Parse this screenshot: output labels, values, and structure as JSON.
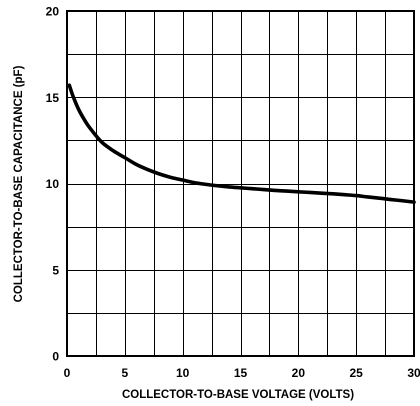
{
  "chart_data": {
    "type": "line",
    "title": "",
    "xlabel": "COLLECTOR-TO-BASE VOLTAGE (VOLTS)",
    "ylabel": "COLLECTOR-TO-BASE CAPACITANCE (pF)",
    "xlim": [
      0,
      30
    ],
    "ylim": [
      0,
      20
    ],
    "x_ticks": [
      0,
      5,
      10,
      15,
      20,
      25,
      30
    ],
    "y_ticks": [
      0,
      5,
      10,
      15,
      20
    ],
    "x_tick_labels": [
      "0",
      "5",
      "10",
      "15",
      "20",
      "25",
      "30"
    ],
    "y_tick_labels": [
      "0",
      "5",
      "10",
      "15",
      "20"
    ],
    "x_gridlines": [
      0,
      2.5,
      5,
      7.5,
      10,
      12.5,
      15,
      17.5,
      20,
      22.5,
      25,
      27.5,
      30
    ],
    "y_gridlines": [
      0,
      2.5,
      5,
      7.5,
      10,
      12.5,
      15,
      17.5,
      20
    ],
    "grid": true,
    "legend": "none",
    "series": [
      {
        "color": "#000000",
        "x": [
          0.2,
          0.5,
          1,
          1.5,
          2,
          3,
          4,
          5,
          6,
          7,
          8,
          9,
          10,
          11,
          12,
          13,
          14,
          15,
          16,
          17,
          18,
          19,
          20,
          21,
          22,
          23,
          24,
          25,
          26,
          27,
          28,
          29,
          30
        ],
        "y": [
          15.7,
          15.1,
          14.3,
          13.7,
          13.2,
          12.4,
          11.9,
          11.5,
          11.1,
          10.8,
          10.55,
          10.35,
          10.2,
          10.05,
          9.95,
          9.87,
          9.8,
          9.75,
          9.7,
          9.65,
          9.6,
          9.56,
          9.52,
          9.48,
          9.44,
          9.4,
          9.35,
          9.3,
          9.22,
          9.15,
          9.07,
          9.0,
          8.92
        ]
      }
    ]
  }
}
